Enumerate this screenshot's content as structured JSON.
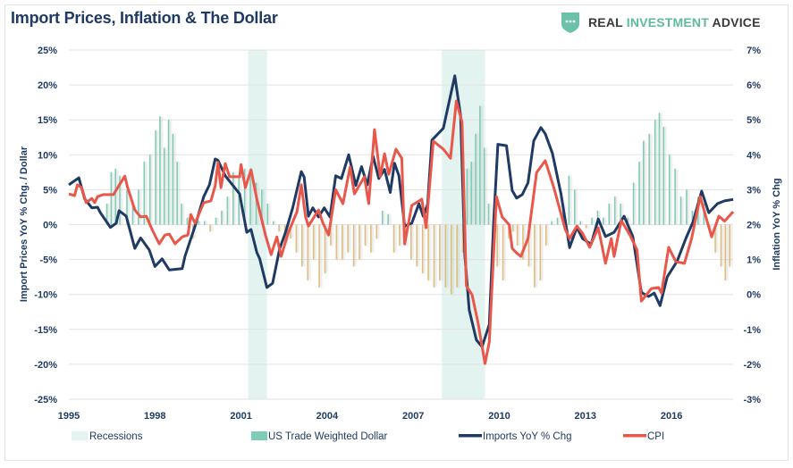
{
  "title": "Import Prices, Inflation & The Dollar",
  "logo": {
    "part1": "REAL ",
    "part2": "INVESTMENT",
    "part3": " ADVICE",
    "icon": "shield-icon"
  },
  "colors": {
    "imports": "#1f3a63",
    "cpi": "#e8574a",
    "dollar_pos": "#7fcdb6",
    "dollar_neg": "#e0bd7e",
    "recession": "#e3f3ef",
    "text": "#1f3a63"
  },
  "chart_data": {
    "type": "bar+line",
    "title": "Import Prices, Inflation & The Dollar",
    "ylabel_left": "Import Prices YoY % Chg. / Dollar",
    "ylabel_right": "Inflation YoY % Chg",
    "ylim_left": [
      -25,
      25
    ],
    "ylim_right": [
      -3,
      7
    ],
    "xlim": [
      1995,
      2018.15
    ],
    "yticks_left": [
      "25%",
      "20%",
      "15%",
      "10%",
      "5%",
      "0%",
      "-5%",
      "-10%",
      "-15%",
      "-20%",
      "-25%"
    ],
    "yticks_right": [
      "7%",
      "6%",
      "5%",
      "4%",
      "3%",
      "2%",
      "1%",
      "0%",
      "-1%",
      "-2%",
      "-3%"
    ],
    "xticks": [
      "1995",
      "1998",
      "2001",
      "2004",
      "2007",
      "2010",
      "2013",
      "2016"
    ],
    "grid": true,
    "legend_position": "bottom",
    "legend": [
      "Recessions",
      "US Trade Weighted Dollar",
      "Imports YoY % Chg",
      "CPI"
    ],
    "recessions": [
      [
        2001.25,
        2001.9
      ],
      [
        2008.0,
        2009.5
      ]
    ],
    "dollar": [
      [
        1996.3,
        3
      ],
      [
        1996.45,
        7.5
      ],
      [
        1996.6,
        8
      ],
      [
        1996.75,
        7
      ],
      [
        1997.0,
        5
      ],
      [
        1997.2,
        3
      ],
      [
        1997.4,
        5
      ],
      [
        1997.6,
        9
      ],
      [
        1997.8,
        10
      ],
      [
        1998.0,
        13.5
      ],
      [
        1998.15,
        15.5
      ],
      [
        1998.3,
        11
      ],
      [
        1998.45,
        15
      ],
      [
        1998.6,
        13
      ],
      [
        1998.75,
        9
      ],
      [
        1998.9,
        3
      ],
      [
        1999.1,
        1
      ],
      [
        1999.3,
        -2
      ],
      [
        1999.5,
        0.5
      ],
      [
        1999.7,
        0.5
      ],
      [
        1999.9,
        -1
      ],
      [
        2000.1,
        1
      ],
      [
        2000.3,
        2
      ],
      [
        2000.5,
        4
      ],
      [
        2000.7,
        7.5
      ],
      [
        2000.9,
        7
      ],
      [
        2001.1,
        8
      ],
      [
        2001.3,
        7
      ],
      [
        2001.5,
        6
      ],
      [
        2001.7,
        5
      ],
      [
        2001.9,
        3
      ],
      [
        2002.1,
        0.5
      ],
      [
        2002.3,
        -1
      ],
      [
        2002.5,
        -3
      ],
      [
        2002.7,
        -2
      ],
      [
        2002.9,
        -4
      ],
      [
        2003.1,
        -6
      ],
      [
        2003.3,
        -8
      ],
      [
        2003.5,
        -5
      ],
      [
        2003.7,
        -9
      ],
      [
        2003.9,
        -7
      ],
      [
        2004.1,
        -3
      ],
      [
        2004.3,
        -5
      ],
      [
        2004.5,
        -5
      ],
      [
        2004.7,
        -4
      ],
      [
        2004.9,
        -6
      ],
      [
        2005.1,
        -5
      ],
      [
        2005.3,
        -3
      ],
      [
        2005.5,
        -4
      ],
      [
        2005.7,
        -2
      ],
      [
        2005.9,
        2
      ],
      [
        2006.1,
        1.5
      ],
      [
        2006.3,
        -4
      ],
      [
        2006.5,
        -3
      ],
      [
        2006.7,
        -3
      ],
      [
        2006.9,
        -5
      ],
      [
        2007.1,
        -6
      ],
      [
        2007.3,
        -7
      ],
      [
        2007.5,
        -8
      ],
      [
        2007.7,
        -9
      ],
      [
        2007.9,
        -8
      ],
      [
        2008.1,
        -9
      ],
      [
        2008.3,
        -10
      ],
      [
        2008.5,
        -9
      ],
      [
        2008.7,
        -4
      ],
      [
        2008.85,
        8
      ],
      [
        2009.0,
        9
      ],
      [
        2009.15,
        13
      ],
      [
        2009.3,
        17
      ],
      [
        2009.45,
        11
      ],
      [
        2009.6,
        3
      ],
      [
        2009.75,
        -3
      ],
      [
        2009.9,
        -6
      ],
      [
        2010.1,
        -8
      ],
      [
        2010.3,
        -2
      ],
      [
        2010.45,
        -1
      ],
      [
        2010.6,
        -3
      ],
      [
        2010.8,
        -5
      ],
      [
        2011.0,
        -6
      ],
      [
        2011.2,
        -9
      ],
      [
        2011.4,
        -8
      ],
      [
        2011.6,
        -3
      ],
      [
        2011.8,
        0.5
      ],
      [
        2012.0,
        1
      ],
      [
        2012.2,
        3
      ],
      [
        2012.4,
        7
      ],
      [
        2012.6,
        5
      ],
      [
        2012.8,
        0.5
      ],
      [
        2013.0,
        -0.5
      ],
      [
        2013.2,
        1
      ],
      [
        2013.4,
        2
      ],
      [
        2013.6,
        1
      ],
      [
        2013.8,
        3
      ],
      [
        2014.0,
        4
      ],
      [
        2014.2,
        3
      ],
      [
        2014.45,
        1
      ],
      [
        2014.65,
        6
      ],
      [
        2014.85,
        9
      ],
      [
        2015.0,
        12
      ],
      [
        2015.2,
        13
      ],
      [
        2015.4,
        15
      ],
      [
        2015.55,
        16
      ],
      [
        2015.7,
        14
      ],
      [
        2015.9,
        10
      ],
      [
        2016.1,
        8
      ],
      [
        2016.3,
        4
      ],
      [
        2016.5,
        5
      ],
      [
        2016.7,
        2
      ],
      [
        2016.9,
        4
      ],
      [
        2017.1,
        3
      ],
      [
        2017.3,
        -1
      ],
      [
        2017.5,
        -4
      ],
      [
        2017.7,
        -6
      ],
      [
        2017.85,
        -8
      ],
      [
        2018.0,
        -6
      ]
    ],
    "imports": [
      [
        1995.0,
        5.7
      ],
      [
        1995.35,
        6.7
      ],
      [
        1995.55,
        3.7
      ],
      [
        1995.8,
        2.4
      ],
      [
        1996.0,
        2.5
      ],
      [
        1996.1,
        1.7
      ],
      [
        1996.45,
        -0.4
      ],
      [
        1996.65,
        0.2
      ],
      [
        1996.75,
        2.0
      ],
      [
        1997.0,
        1.2
      ],
      [
        1997.3,
        -3.4
      ],
      [
        1997.5,
        -1.9
      ],
      [
        1997.8,
        -3.6
      ],
      [
        1998.0,
        -6.0
      ],
      [
        1998.25,
        -4.9
      ],
      [
        1998.5,
        -6.5
      ],
      [
        1998.95,
        -6.3
      ],
      [
        1999.05,
        -4.5
      ],
      [
        1999.4,
        -0.2
      ],
      [
        1999.7,
        4.0
      ],
      [
        1999.9,
        5.7
      ],
      [
        2000.1,
        9.4
      ],
      [
        2000.2,
        9.2
      ],
      [
        2000.45,
        7.0
      ],
      [
        2000.7,
        5.7
      ],
      [
        2000.95,
        4.4
      ],
      [
        2001.2,
        -1.1
      ],
      [
        2001.35,
        -0.7
      ],
      [
        2001.55,
        -4.0
      ],
      [
        2001.65,
        -4.9
      ],
      [
        2001.9,
        -9.0
      ],
      [
        2002.1,
        -8.4
      ],
      [
        2002.35,
        -3.4
      ],
      [
        2002.55,
        -1.1
      ],
      [
        2002.8,
        2.4
      ],
      [
        2003.1,
        7.6
      ],
      [
        2003.2,
        6.8
      ],
      [
        2003.35,
        1.2
      ],
      [
        2003.5,
        2.4
      ],
      [
        2003.7,
        1.1
      ],
      [
        2003.9,
        2.4
      ],
      [
        2004.1,
        1.1
      ],
      [
        2004.3,
        7.0
      ],
      [
        2004.5,
        6.6
      ],
      [
        2004.75,
        10.0
      ],
      [
        2005.0,
        5.6
      ],
      [
        2005.2,
        8.3
      ],
      [
        2005.4,
        5.7
      ],
      [
        2005.6,
        9.8
      ],
      [
        2005.8,
        6.6
      ],
      [
        2006.0,
        7.9
      ],
      [
        2006.2,
        4.6
      ],
      [
        2006.35,
        8.8
      ],
      [
        2006.5,
        7.0
      ],
      [
        2006.7,
        -0.2
      ],
      [
        2006.95,
        0.2
      ],
      [
        2007.2,
        3.0
      ],
      [
        2007.35,
        1.2
      ],
      [
        2007.5,
        2.9
      ],
      [
        2007.65,
        12.1
      ],
      [
        2008.05,
        13.8
      ],
      [
        2008.45,
        21.3
      ],
      [
        2008.65,
        15.6
      ],
      [
        2008.8,
        -4.5
      ],
      [
        2008.95,
        -12.2
      ],
      [
        2009.2,
        -16.5
      ],
      [
        2009.4,
        -17.5
      ],
      [
        2009.65,
        -14.3
      ],
      [
        2009.8,
        0.2
      ],
      [
        2009.95,
        11.5
      ],
      [
        2010.25,
        11.3
      ],
      [
        2010.45,
        4.9
      ],
      [
        2010.6,
        3.8
      ],
      [
        2010.8,
        4.3
      ],
      [
        2011.0,
        6.0
      ],
      [
        2011.2,
        12.0
      ],
      [
        2011.45,
        13.9
      ],
      [
        2011.6,
        13.0
      ],
      [
        2011.85,
        10.2
      ],
      [
        2012.15,
        4.4
      ],
      [
        2012.45,
        -3.3
      ],
      [
        2012.7,
        -0.4
      ],
      [
        2012.9,
        -2.0
      ],
      [
        2013.2,
        -2.8
      ],
      [
        2013.45,
        0.8
      ],
      [
        2013.7,
        -1.7
      ],
      [
        2014.0,
        -1.1
      ],
      [
        2014.35,
        1.2
      ],
      [
        2014.65,
        -1.7
      ],
      [
        2014.95,
        -9.7
      ],
      [
        2015.2,
        -10.3
      ],
      [
        2015.4,
        -9.8
      ],
      [
        2015.6,
        -11.6
      ],
      [
        2015.85,
        -7.5
      ],
      [
        2016.2,
        -5.2
      ],
      [
        2016.5,
        -2.0
      ],
      [
        2016.75,
        0.4
      ],
      [
        2017.05,
        4.8
      ],
      [
        2017.3,
        1.7
      ],
      [
        2017.6,
        3.0
      ],
      [
        2017.85,
        3.4
      ],
      [
        2018.15,
        3.6
      ]
    ],
    "cpi": [
      [
        1995.0,
        2.88
      ],
      [
        1995.2,
        2.83
      ],
      [
        1995.3,
        3.14
      ],
      [
        1995.45,
        3.06
      ],
      [
        1995.6,
        2.63
      ],
      [
        1995.8,
        2.75
      ],
      [
        1995.9,
        2.63
      ],
      [
        1996.0,
        2.8
      ],
      [
        1996.2,
        2.86
      ],
      [
        1996.55,
        2.86
      ],
      [
        1996.95,
        3.39
      ],
      [
        1997.05,
        3.06
      ],
      [
        1997.3,
        2.42
      ],
      [
        1997.5,
        2.22
      ],
      [
        1997.7,
        2.24
      ],
      [
        1997.9,
        1.86
      ],
      [
        1998.15,
        1.45
      ],
      [
        1998.35,
        1.7
      ],
      [
        1998.5,
        1.73
      ],
      [
        1998.7,
        1.45
      ],
      [
        1998.95,
        1.65
      ],
      [
        1999.15,
        1.7
      ],
      [
        1999.25,
        2.29
      ],
      [
        1999.4,
        2.04
      ],
      [
        1999.7,
        2.63
      ],
      [
        1999.95,
        2.68
      ],
      [
        2000.1,
        3.11
      ],
      [
        2000.2,
        3.78
      ],
      [
        2000.3,
        3.06
      ],
      [
        2000.45,
        3.75
      ],
      [
        2000.6,
        3.37
      ],
      [
        2000.95,
        3.37
      ],
      [
        2001.0,
        3.72
      ],
      [
        2001.15,
        3.06
      ],
      [
        2001.35,
        3.57
      ],
      [
        2001.55,
        2.73
      ],
      [
        2001.85,
        1.7
      ],
      [
        2002.05,
        1.14
      ],
      [
        2002.25,
        1.65
      ],
      [
        2002.4,
        1.09
      ],
      [
        2002.65,
        1.78
      ],
      [
        2002.95,
        2.37
      ],
      [
        2003.1,
        3.14
      ],
      [
        2003.25,
        2.22
      ],
      [
        2003.35,
        1.96
      ],
      [
        2003.7,
        2.42
      ],
      [
        2003.85,
        2.05
      ],
      [
        2004.05,
        1.7
      ],
      [
        2004.3,
        3.0
      ],
      [
        2004.55,
        2.6
      ],
      [
        2004.8,
        3.65
      ],
      [
        2004.95,
        2.88
      ],
      [
        2005.3,
        3.37
      ],
      [
        2005.45,
        2.6
      ],
      [
        2005.65,
        4.72
      ],
      [
        2005.85,
        3.37
      ],
      [
        2006.0,
        4.03
      ],
      [
        2006.15,
        3.44
      ],
      [
        2006.4,
        4.16
      ],
      [
        2006.6,
        3.9
      ],
      [
        2006.7,
        1.45
      ],
      [
        2006.95,
        2.55
      ],
      [
        2007.3,
        2.73
      ],
      [
        2007.45,
        1.91
      ],
      [
        2007.7,
        4.39
      ],
      [
        2008.05,
        4.16
      ],
      [
        2008.3,
        3.9
      ],
      [
        2008.5,
        5.54
      ],
      [
        2008.7,
        4.93
      ],
      [
        2008.85,
        0.25
      ],
      [
        2009.05,
        -0.01
      ],
      [
        2009.25,
        -0.77
      ],
      [
        2009.5,
        -1.98
      ],
      [
        2009.65,
        -1.36
      ],
      [
        2009.9,
        2.8
      ],
      [
        2010.1,
        2.22
      ],
      [
        2010.35,
        1.99
      ],
      [
        2010.45,
        1.32
      ],
      [
        2010.6,
        1.19
      ],
      [
        2010.75,
        1.09
      ],
      [
        2011.0,
        1.6
      ],
      [
        2011.3,
        3.49
      ],
      [
        2011.6,
        3.83
      ],
      [
        2011.9,
        3.06
      ],
      [
        2012.3,
        1.86
      ],
      [
        2012.45,
        1.6
      ],
      [
        2012.7,
        1.96
      ],
      [
        2012.9,
        1.75
      ],
      [
        2013.15,
        1.35
      ],
      [
        2013.45,
        1.91
      ],
      [
        2013.7,
        0.89
      ],
      [
        2013.9,
        1.6
      ],
      [
        2014.0,
        1.09
      ],
      [
        2014.25,
        2.12
      ],
      [
        2014.55,
        1.7
      ],
      [
        2014.8,
        1.27
      ],
      [
        2014.95,
        -0.19
      ],
      [
        2015.3,
        0.17
      ],
      [
        2015.55,
        0.2
      ],
      [
        2015.65,
        0.04
      ],
      [
        2015.9,
        1.35
      ],
      [
        2016.15,
        0.94
      ],
      [
        2016.45,
        0.89
      ],
      [
        2016.7,
        1.6
      ],
      [
        2017.0,
        2.8
      ],
      [
        2017.2,
        2.22
      ],
      [
        2017.4,
        1.65
      ],
      [
        2017.65,
        2.24
      ],
      [
        2017.85,
        2.1
      ],
      [
        2018.15,
        2.37
      ]
    ]
  }
}
